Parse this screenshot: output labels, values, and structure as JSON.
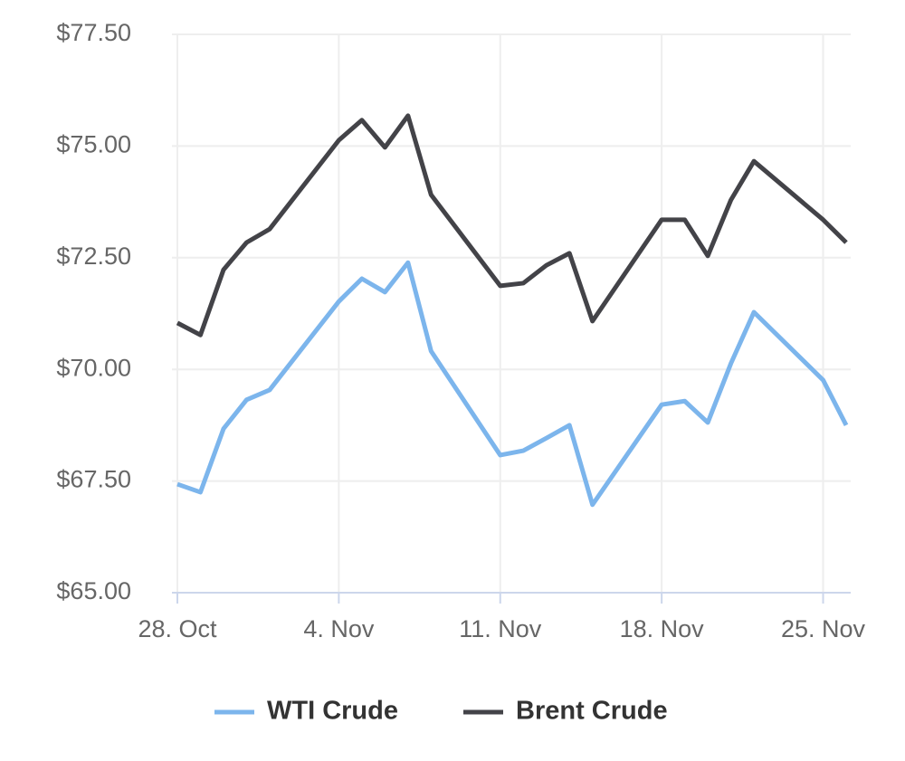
{
  "chart_data": {
    "type": "line",
    "x": [
      "28. Oct",
      "29. Oct",
      "30. Oct",
      "31. Oct",
      "1. Nov",
      "4. Nov",
      "5. Nov",
      "6. Nov",
      "7. Nov",
      "8. Nov",
      "11. Nov",
      "12. Nov",
      "13. Nov",
      "14. Nov",
      "15. Nov",
      "18. Nov",
      "19. Nov",
      "20. Nov",
      "21. Nov",
      "22. Nov",
      "25. Nov",
      "26. Nov"
    ],
    "series": [
      {
        "name": "WTI Crude",
        "color": "#7cb5ec",
        "values": [
          67.43,
          67.25,
          68.67,
          69.32,
          69.54,
          71.52,
          72.03,
          71.73,
          72.39,
          70.41,
          68.08,
          68.18,
          68.46,
          68.75,
          66.97,
          69.21,
          69.29,
          68.81,
          70.13,
          71.28,
          69.76,
          68.75
        ]
      },
      {
        "name": "Brent Crude",
        "color": "#434348",
        "values": [
          71.04,
          70.77,
          72.23,
          72.84,
          73.14,
          75.13,
          75.58,
          74.97,
          75.68,
          73.91,
          71.87,
          71.93,
          72.33,
          72.6,
          71.08,
          73.35,
          73.35,
          72.54,
          73.79,
          74.66,
          73.35,
          72.84
        ]
      }
    ],
    "xlim": [
      "28. Oct",
      "26. Nov"
    ],
    "xticks": [
      "28. Oct",
      "4. Nov",
      "11. Nov",
      "18. Nov",
      "25. Nov"
    ],
    "ylim": [
      65,
      77.5
    ],
    "yticks": [
      {
        "value": 65,
        "label": "$65.00"
      },
      {
        "value": 67.5,
        "label": "$67.50"
      },
      {
        "value": 70,
        "label": "$70.00"
      },
      {
        "value": 72.5,
        "label": "$72.50"
      },
      {
        "value": 75,
        "label": "$75.00"
      },
      {
        "value": 77.5,
        "label": "$77.50"
      }
    ],
    "grid": true,
    "legend": "bottom"
  }
}
